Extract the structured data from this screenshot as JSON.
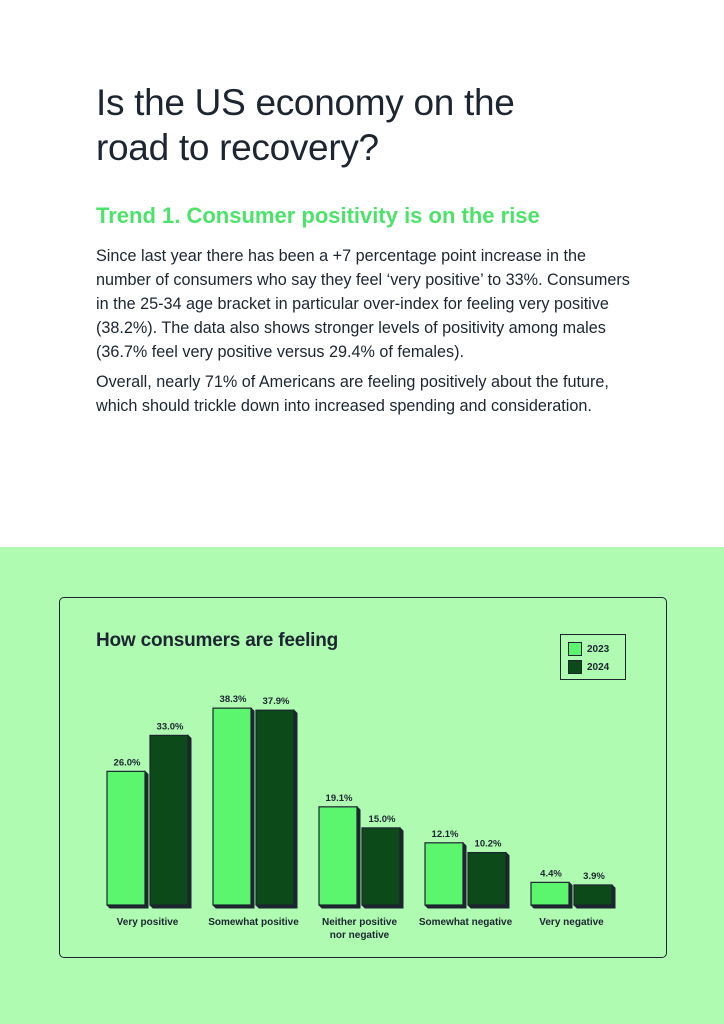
{
  "page": {
    "title_lines": [
      "Is the US economy on the",
      "road to recovery?"
    ],
    "subtitle": "Trend 1. Consumer positivity is on the rise",
    "paragraphs": [
      "Since last year there has been a +7 percentage point increase in the number of consumers who say they feel ‘very positive’ to 33%. Consumers in the 25-34 age bracket in particular over-index for feeling very positive (38.2%). The data also shows stronger levels of positivity among males (36.7% feel very positive versus 29.4% of females).",
      "Overall, nearly 71% of Americans are feeling positively about the future, which should trickle down into increased spending and consideration."
    ]
  },
  "colors": {
    "ink": "#1c2530",
    "accent": "#4de36a",
    "band": "#aefbb1",
    "series_2023": "#5cf56e",
    "series_2024": "#0d4a1a"
  },
  "chart_data": {
    "type": "bar",
    "title": "How consumers are feeling",
    "categories": [
      [
        "Very positive"
      ],
      [
        "Somewhat positive"
      ],
      [
        "Neither positive",
        "nor negative"
      ],
      [
        "Somewhat negative"
      ],
      [
        "Very negative"
      ]
    ],
    "series": [
      {
        "name": "2023",
        "values": [
          26.0,
          38.3,
          19.1,
          12.1,
          4.4
        ],
        "labels": [
          "26.0%",
          "38.3%",
          "19.1%",
          "12.1%",
          "4.4%"
        ]
      },
      {
        "name": "2024",
        "values": [
          33.0,
          37.9,
          15.0,
          10.2,
          3.9
        ],
        "labels": [
          "33.0%",
          "37.9%",
          "15.0%",
          "10.2%",
          "3.9%"
        ]
      }
    ],
    "legend": "top-right",
    "ylim": [
      0,
      40
    ],
    "grid": false,
    "xlabel": "",
    "ylabel": ""
  }
}
